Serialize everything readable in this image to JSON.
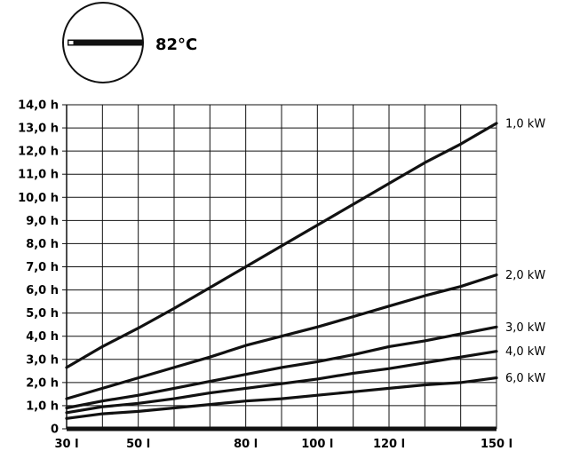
{
  "temperature_label": "82°C",
  "colors": {
    "line": "#111111",
    "grid": "#111111",
    "background": "#ffffff"
  },
  "icon": "thermostat-dial-icon",
  "chart_data": {
    "type": "line",
    "x": [
      30,
      40,
      50,
      60,
      70,
      80,
      90,
      100,
      110,
      120,
      130,
      140,
      150
    ],
    "xlim": [
      30,
      150
    ],
    "ylim": [
      0,
      14
    ],
    "x_ticks": [
      30,
      50,
      80,
      100,
      120,
      150
    ],
    "x_tick_labels": [
      "30 l",
      "50 l",
      "80 l",
      "100 l",
      "120 l",
      "150 l"
    ],
    "y_ticks": [
      0,
      1,
      2,
      3,
      4,
      5,
      6,
      7,
      8,
      9,
      10,
      11,
      12,
      13,
      14
    ],
    "y_tick_labels": [
      "0",
      "1,0 h",
      "2,0 h",
      "3,0 h",
      "4,0 h",
      "5,0 h",
      "6,0 h",
      "7,0 h",
      "8,0 h",
      "9,0 h",
      "10,0 h",
      "11,0 h",
      "12,0 h",
      "13,0 h",
      "14,0 h"
    ],
    "grid": true,
    "series": [
      {
        "name": "1,0 kW",
        "values": [
          2.65,
          3.55,
          4.35,
          5.2,
          6.1,
          7.0,
          7.9,
          8.8,
          9.7,
          10.6,
          11.5,
          12.3,
          13.2
        ]
      },
      {
        "name": "2,0 kW",
        "values": [
          1.3,
          1.75,
          2.2,
          2.65,
          3.1,
          3.6,
          4.0,
          4.4,
          4.85,
          5.3,
          5.75,
          6.15,
          6.65
        ]
      },
      {
        "name": "3,0 kW",
        "values": [
          0.9,
          1.2,
          1.45,
          1.75,
          2.05,
          2.35,
          2.65,
          2.9,
          3.2,
          3.55,
          3.8,
          4.1,
          4.4
        ]
      },
      {
        "name": "4,0 kW",
        "values": [
          0.7,
          0.95,
          1.1,
          1.3,
          1.55,
          1.75,
          1.95,
          2.15,
          2.4,
          2.6,
          2.85,
          3.1,
          3.35
        ]
      },
      {
        "name": "6,0 kW",
        "values": [
          0.45,
          0.65,
          0.75,
          0.9,
          1.05,
          1.2,
          1.3,
          1.45,
          1.6,
          1.75,
          1.9,
          2.0,
          2.2
        ]
      }
    ]
  }
}
